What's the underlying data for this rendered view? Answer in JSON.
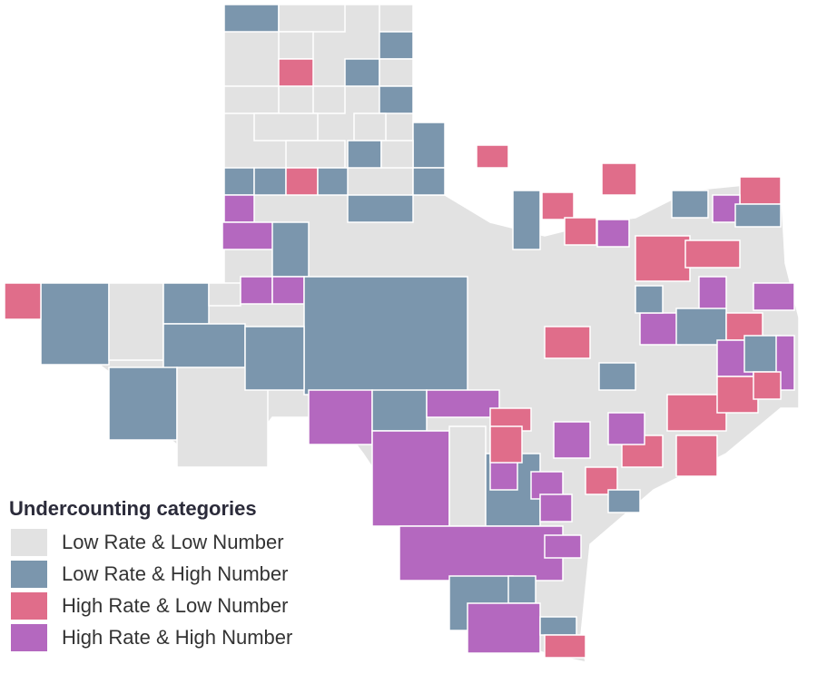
{
  "legend": {
    "title": "Undercounting categories",
    "items": [
      {
        "label": "Low Rate & Low Number",
        "color": "#e2e2e2"
      },
      {
        "label": "Low Rate & High Number",
        "color": "#7b96ad"
      },
      {
        "label": "High Rate & Low Number",
        "color": "#e06d8a"
      },
      {
        "label": "High Rate & High Number",
        "color": "#b468bf"
      }
    ]
  }
}
